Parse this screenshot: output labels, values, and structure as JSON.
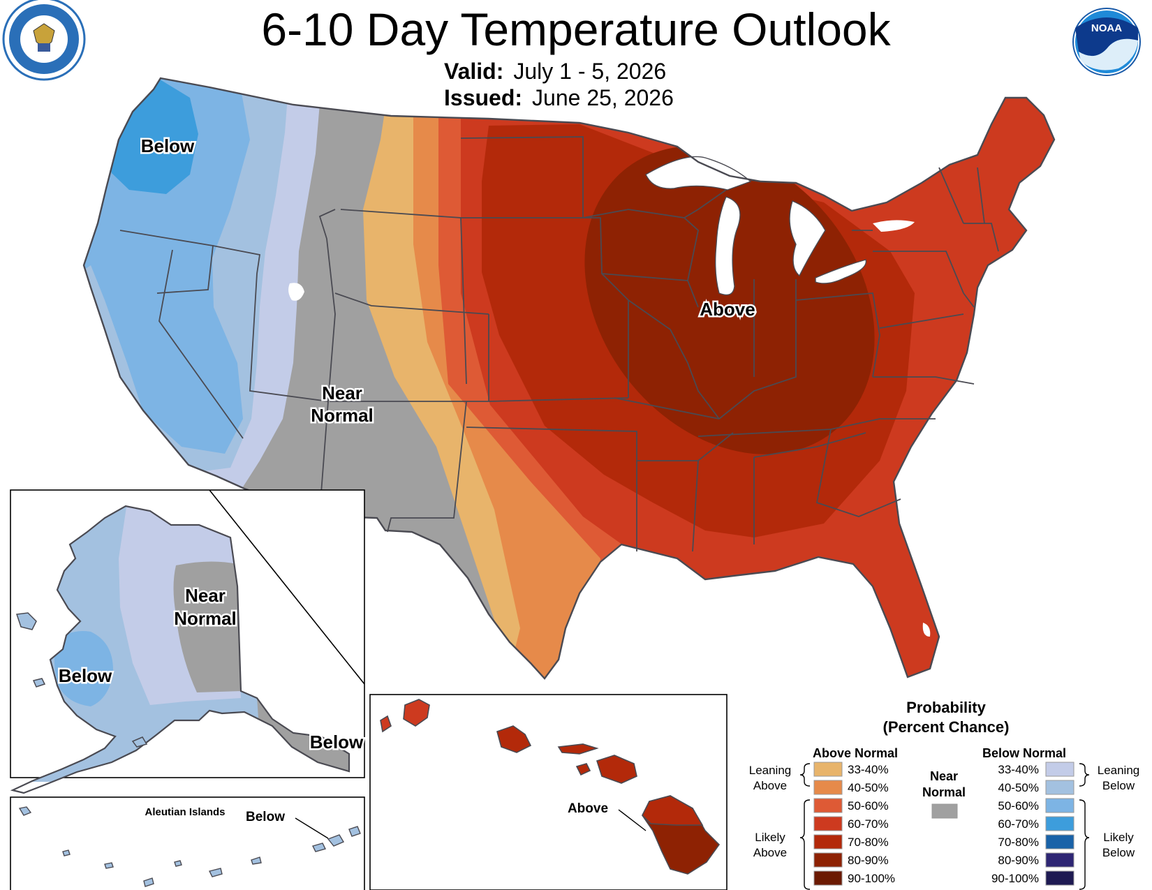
{
  "header": {
    "title": "6-10 Day Temperature Outlook",
    "valid_label": "Valid:",
    "valid_value": "July 1 - 5, 2026",
    "issued_label": "Issued:",
    "issued_value": "June 25, 2026",
    "noaa_logo_text": "NOAA"
  },
  "map_labels": {
    "conus_below": "Below",
    "conus_near_1": "Near",
    "conus_near_2": "Normal",
    "conus_above": "Above",
    "alaska_near_1": "Near",
    "alaska_near_2": "Normal",
    "alaska_below_west": "Below",
    "alaska_below_southeast": "Below",
    "aleutian_title": "Aleutian Islands",
    "aleutian_below": "Below",
    "hawaii_above": "Above"
  },
  "legend": {
    "title_1": "Probability",
    "title_2": "(Percent Chance)",
    "above_header": "Above Normal",
    "below_header": "Below Normal",
    "near_1": "Near",
    "near_2": "Normal",
    "near_color": "#a0a0a0",
    "leaning_above_1": "Leaning",
    "leaning_above_2": "Above",
    "likely_above_1": "Likely",
    "likely_above_2": "Above",
    "leaning_below_1": "Leaning",
    "leaning_below_2": "Below",
    "likely_below_1": "Likely",
    "likely_below_2": "Below",
    "above": [
      {
        "range": "33-40%",
        "color": "#e8b46b"
      },
      {
        "range": "40-50%",
        "color": "#e68a4a"
      },
      {
        "range": "50-60%",
        "color": "#de5a35"
      },
      {
        "range": "60-70%",
        "color": "#cd3a1f"
      },
      {
        "range": "70-80%",
        "color": "#b3290a"
      },
      {
        "range": "80-90%",
        "color": "#8e2203"
      },
      {
        "range": "90-100%",
        "color": "#6b1a02"
      }
    ],
    "below": [
      {
        "range": "33-40%",
        "color": "#c3cce8"
      },
      {
        "range": "40-50%",
        "color": "#a3c1e0"
      },
      {
        "range": "50-60%",
        "color": "#7db4e4"
      },
      {
        "range": "60-70%",
        "color": "#3d9ddc"
      },
      {
        "range": "70-80%",
        "color": "#1962a8"
      },
      {
        "range": "80-90%",
        "color": "#2e2674"
      },
      {
        "range": "90-100%",
        "color": "#1e1a52"
      }
    ]
  }
}
